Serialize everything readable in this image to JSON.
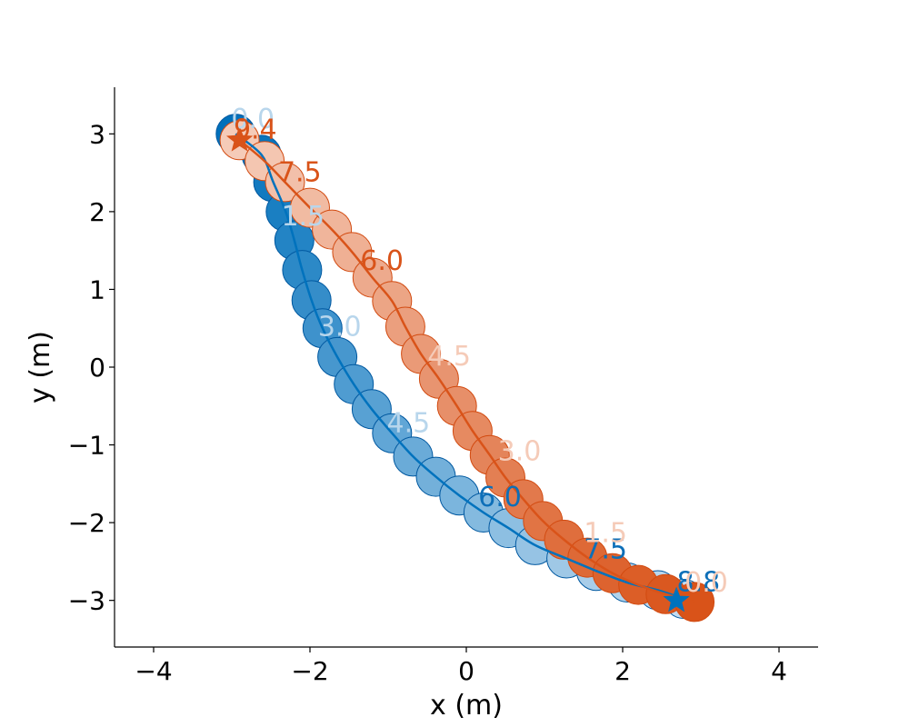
{
  "chart_data": {
    "type": "scatter",
    "xlabel": "x (m)",
    "ylabel": "y (m)",
    "xlim": [
      -4.5,
      4.5
    ],
    "ylim": [
      -3.6,
      3.6
    ],
    "xticks": [
      -4,
      -2,
      0,
      2,
      4
    ],
    "yticks": [
      -3,
      -2,
      -1,
      0,
      1,
      2,
      3
    ],
    "xtick_labels": [
      "−4",
      "−2",
      "0",
      "2",
      "4"
    ],
    "ytick_labels": [
      "−3",
      "−2",
      "−1",
      "0",
      "1",
      "2",
      "3"
    ],
    "marker_radius": 0.25,
    "series": [
      {
        "color": "#0072BD",
        "start_color": "#0070bb",
        "end_color": "#c2dcf0",
        "edge_color": "#0058a0",
        "star_at_end": true,
        "points": [
          [
            -2.95,
            3.0
          ],
          [
            -2.62,
            2.73
          ],
          [
            -2.47,
            2.38
          ],
          [
            -2.31,
            2.0
          ],
          [
            -2.2,
            1.63
          ],
          [
            -2.1,
            1.25
          ],
          [
            -1.98,
            0.86
          ],
          [
            -1.84,
            0.5
          ],
          [
            -1.65,
            0.13
          ],
          [
            -1.44,
            -0.22
          ],
          [
            -1.21,
            -0.54
          ],
          [
            -0.95,
            -0.85
          ],
          [
            -0.68,
            -1.15
          ],
          [
            -0.39,
            -1.41
          ],
          [
            -0.09,
            -1.65
          ],
          [
            0.22,
            -1.87
          ],
          [
            0.54,
            -2.07
          ],
          [
            0.88,
            -2.29
          ],
          [
            1.28,
            -2.46
          ],
          [
            1.66,
            -2.62
          ],
          [
            2.06,
            -2.77
          ],
          [
            2.45,
            -2.87
          ],
          [
            2.78,
            -2.98
          ]
        ],
        "time_labels": [
          {
            "text": "0.0",
            "x": -2.73,
            "y": 3.2,
            "color": "#b8d6ec"
          },
          {
            "text": "1.5",
            "x": -2.09,
            "y": 1.95,
            "color": "#b8d6ec"
          },
          {
            "text": "3.0",
            "x": -1.62,
            "y": 0.53,
            "color": "#b8d6ec"
          },
          {
            "text": "4.5",
            "x": -0.74,
            "y": -0.71,
            "color": "#b8d6ec"
          },
          {
            "text": "6.0",
            "x": 0.43,
            "y": -1.66,
            "color": "#0d6fb8"
          },
          {
            "text": "7.5",
            "x": 1.78,
            "y": -2.33,
            "color": "#0d6fb8"
          },
          {
            "text": "8.8",
            "x": 2.97,
            "y": -2.75,
            "color": "#0d6fb8"
          }
        ]
      },
      {
        "color": "#D95319",
        "start_color": "#f5cbb8",
        "end_color": "#d95319",
        "edge_color": "#d24a10",
        "star_at_start": true,
        "points": [
          [
            -2.9,
            2.92
          ],
          [
            -2.58,
            2.65
          ],
          [
            -2.32,
            2.38
          ],
          [
            -2.0,
            2.05
          ],
          [
            -1.72,
            1.77
          ],
          [
            -1.46,
            1.48
          ],
          [
            -1.2,
            1.15
          ],
          [
            -0.95,
            0.85
          ],
          [
            -0.78,
            0.52
          ],
          [
            -0.58,
            0.17
          ],
          [
            -0.35,
            -0.15
          ],
          [
            -0.12,
            -0.5
          ],
          [
            0.08,
            -0.82
          ],
          [
            0.3,
            -1.13
          ],
          [
            0.5,
            -1.42
          ],
          [
            0.73,
            -1.7
          ],
          [
            0.98,
            -1.98
          ],
          [
            1.25,
            -2.22
          ],
          [
            1.55,
            -2.45
          ],
          [
            1.87,
            -2.65
          ],
          [
            2.2,
            -2.8
          ],
          [
            2.55,
            -2.92
          ],
          [
            2.92,
            -3.02
          ]
        ],
        "time_labels": [
          {
            "text": "9.4",
            "x": -2.7,
            "y": 3.07,
            "color": "#d95319"
          },
          {
            "text": "7.5",
            "x": -2.13,
            "y": 2.52,
            "color": "#d95319"
          },
          {
            "text": "6.0",
            "x": -1.08,
            "y": 1.38,
            "color": "#d95319"
          },
          {
            "text": "4.5",
            "x": -0.22,
            "y": 0.15,
            "color": "#f5cbb8"
          },
          {
            "text": "3.0",
            "x": 0.68,
            "y": -1.07,
            "color": "#f5cbb8"
          },
          {
            "text": "1.5",
            "x": 1.78,
            "y": -2.12,
            "color": "#f5cbb8"
          },
          {
            "text": "0.0",
            "x": 3.07,
            "y": -2.76,
            "color": "#f5cbb8"
          }
        ]
      }
    ]
  }
}
